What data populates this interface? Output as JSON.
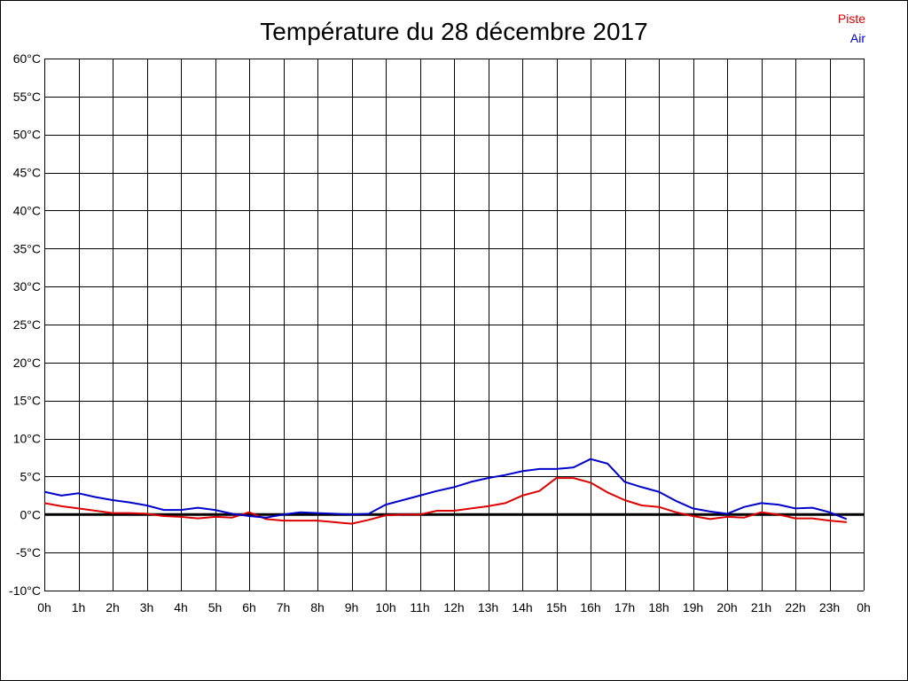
{
  "chart_data": {
    "type": "line",
    "title": "Température du 28 décembre 2017",
    "xlabel": "",
    "ylabel": "",
    "xlim": [
      0,
      24
    ],
    "ylim": [
      -10,
      60
    ],
    "x_tick_labels": [
      "0h",
      "1h",
      "2h",
      "3h",
      "4h",
      "5h",
      "6h",
      "7h",
      "8h",
      "9h",
      "10h",
      "11h",
      "12h",
      "13h",
      "14h",
      "15h",
      "16h",
      "17h",
      "18h",
      "19h",
      "20h",
      "21h",
      "22h",
      "23h",
      "0h"
    ],
    "y_ticks": [
      -10,
      -5,
      0,
      5,
      10,
      15,
      20,
      25,
      30,
      35,
      40,
      45,
      50,
      55,
      60
    ],
    "y_tick_labels": [
      "-10°C",
      "-5°C",
      "0°C",
      "5°C",
      "10°C",
      "15°C",
      "20°C",
      "25°C",
      "30°C",
      "35°C",
      "40°C",
      "45°C",
      "50°C",
      "55°C",
      "60°C"
    ],
    "grid": true,
    "legend_position": "top-right",
    "series": [
      {
        "name": "Piste",
        "color": "#dd0000",
        "x": [
          0,
          0.5,
          1,
          1.5,
          2,
          2.5,
          3,
          3.5,
          4,
          4.5,
          5,
          5.5,
          6,
          6.5,
          7,
          7.5,
          8,
          8.5,
          9,
          9.5,
          10,
          10.5,
          11,
          11.5,
          12,
          12.5,
          13,
          13.5,
          14,
          14.5,
          15,
          15.5,
          16,
          16.5,
          17,
          17.5,
          18,
          18.5,
          19,
          19.5,
          20,
          20.5,
          21,
          21.5,
          22,
          22.5,
          23,
          23.5
        ],
        "y": [
          1.5,
          1.1,
          0.8,
          0.5,
          0.2,
          0.2,
          0.1,
          -0.2,
          -0.3,
          -0.5,
          -0.3,
          -0.4,
          0.3,
          -0.6,
          -0.8,
          -0.8,
          -0.8,
          -1.0,
          -1.2,
          -0.7,
          -0.1,
          0.0,
          0.0,
          0.5,
          0.5,
          0.8,
          1.1,
          1.5,
          2.5,
          3.1,
          4.8,
          4.8,
          4.2,
          2.9,
          1.9,
          1.2,
          1.0,
          0.3,
          -0.2,
          -0.6,
          -0.3,
          -0.4,
          0.3,
          0.0,
          -0.5,
          -0.5,
          -0.8,
          -1.0
        ]
      },
      {
        "name": "Air",
        "color": "#0000cc",
        "x": [
          0,
          0.5,
          1,
          1.5,
          2,
          2.5,
          3,
          3.5,
          4,
          4.5,
          5,
          5.5,
          6,
          6.5,
          7,
          7.5,
          8,
          8.5,
          9,
          9.5,
          10,
          10.5,
          11,
          11.5,
          12,
          12.5,
          13,
          13.5,
          14,
          14.5,
          15,
          15.5,
          16,
          16.5,
          17,
          17.5,
          18,
          18.5,
          19,
          19.5,
          20,
          20.5,
          21,
          21.5,
          22,
          22.5,
          23,
          23.5
        ],
        "y": [
          3.0,
          2.5,
          2.8,
          2.3,
          1.9,
          1.6,
          1.2,
          0.6,
          0.6,
          0.9,
          0.6,
          0.1,
          -0.2,
          -0.4,
          0.0,
          0.3,
          0.2,
          0.1,
          0.0,
          0.1,
          1.3,
          1.9,
          2.5,
          3.1,
          3.6,
          4.3,
          4.8,
          5.2,
          5.7,
          6.0,
          6.0,
          6.2,
          7.3,
          6.7,
          4.3,
          3.6,
          3.0,
          1.8,
          0.8,
          0.4,
          0.1,
          1.0,
          1.5,
          1.3,
          0.8,
          0.9,
          0.3,
          -0.6
        ]
      }
    ]
  }
}
